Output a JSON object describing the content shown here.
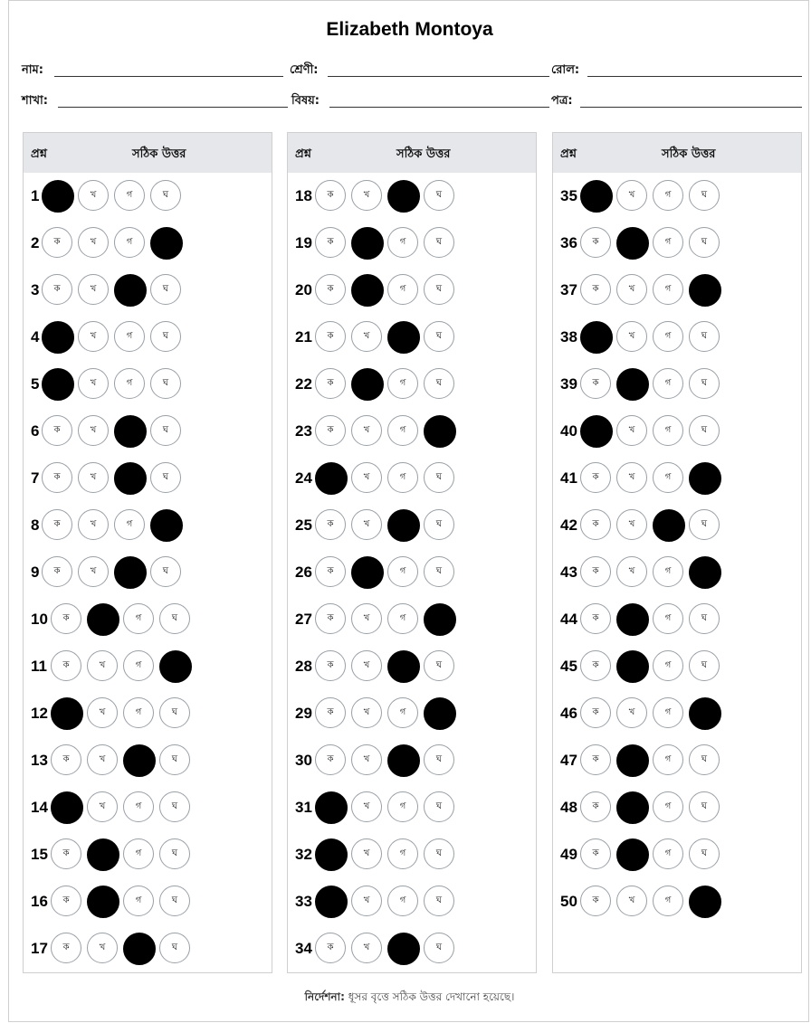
{
  "header": {
    "title": "Elizabeth Montoya",
    "fields_row1": [
      {
        "label": "নাম:"
      },
      {
        "label": "শ্রেণী:"
      },
      {
        "label": "রোল:"
      }
    ],
    "fields_row2": [
      {
        "label": "শাখা:"
      },
      {
        "label": "বিষয়:"
      },
      {
        "label": "পত্র:"
      }
    ]
  },
  "table_headers": {
    "question": "প্রশ্ন",
    "answer": "সঠিক উত্তর"
  },
  "option_labels": [
    "ক",
    "খ",
    "গ",
    "ঘ"
  ],
  "columns": [
    {
      "questions": [
        {
          "num": "1",
          "answer": 0
        },
        {
          "num": "2",
          "answer": 3
        },
        {
          "num": "3",
          "answer": 2
        },
        {
          "num": "4",
          "answer": 0
        },
        {
          "num": "5",
          "answer": 0
        },
        {
          "num": "6",
          "answer": 2
        },
        {
          "num": "7",
          "answer": 2
        },
        {
          "num": "8",
          "answer": 3
        },
        {
          "num": "9",
          "answer": 2
        },
        {
          "num": "10",
          "answer": 1
        },
        {
          "num": "11",
          "answer": 3
        },
        {
          "num": "12",
          "answer": 0
        },
        {
          "num": "13",
          "answer": 2
        },
        {
          "num": "14",
          "answer": 0
        },
        {
          "num": "15",
          "answer": 1
        },
        {
          "num": "16",
          "answer": 1
        },
        {
          "num": "17",
          "answer": 2
        }
      ]
    },
    {
      "questions": [
        {
          "num": "18",
          "answer": 2
        },
        {
          "num": "19",
          "answer": 1
        },
        {
          "num": "20",
          "answer": 1
        },
        {
          "num": "21",
          "answer": 2
        },
        {
          "num": "22",
          "answer": 1
        },
        {
          "num": "23",
          "answer": 3
        },
        {
          "num": "24",
          "answer": 0
        },
        {
          "num": "25",
          "answer": 2
        },
        {
          "num": "26",
          "answer": 1
        },
        {
          "num": "27",
          "answer": 3
        },
        {
          "num": "28",
          "answer": 2
        },
        {
          "num": "29",
          "answer": 3
        },
        {
          "num": "30",
          "answer": 2
        },
        {
          "num": "31",
          "answer": 0
        },
        {
          "num": "32",
          "answer": 0
        },
        {
          "num": "33",
          "answer": 0
        },
        {
          "num": "34",
          "answer": 2
        }
      ]
    },
    {
      "questions": [
        {
          "num": "35",
          "answer": 0
        },
        {
          "num": "36",
          "answer": 1
        },
        {
          "num": "37",
          "answer": 3
        },
        {
          "num": "38",
          "answer": 0
        },
        {
          "num": "39",
          "answer": 1
        },
        {
          "num": "40",
          "answer": 0
        },
        {
          "num": "41",
          "answer": 3
        },
        {
          "num": "42",
          "answer": 2
        },
        {
          "num": "43",
          "answer": 3
        },
        {
          "num": "44",
          "answer": 1
        },
        {
          "num": "45",
          "answer": 1
        },
        {
          "num": "46",
          "answer": 3
        },
        {
          "num": "47",
          "answer": 1
        },
        {
          "num": "48",
          "answer": 1
        },
        {
          "num": "49",
          "answer": 1
        },
        {
          "num": "50",
          "answer": 3
        }
      ]
    }
  ],
  "footer": {
    "label": "নির্দেশনা:",
    "text": "ধূসর বৃত্তে সঠিক উত্তর দেখানো হয়েছে।"
  }
}
